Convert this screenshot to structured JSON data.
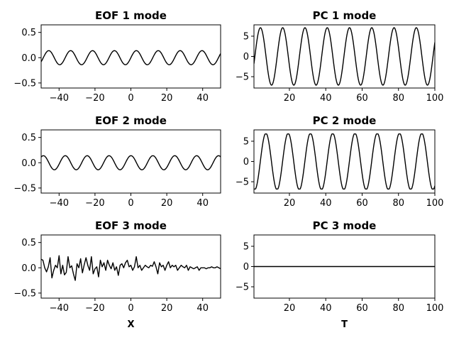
{
  "chart_data": [
    {
      "id": "eof1",
      "type": "line",
      "title": "EOF 1 mode",
      "xlabel": "",
      "ylabel": "",
      "xlim": [
        -50,
        50
      ],
      "ylim": [
        -0.6,
        0.65
      ],
      "xticks": [
        -40,
        -20,
        0,
        20,
        40
      ],
      "xtick_labels": [
        "−40",
        "−20",
        "0",
        "20",
        "40"
      ],
      "yticks": [
        0.5,
        0.0,
        -0.5
      ],
      "ytick_labels": [
        "0.5",
        "0.0",
        "−0.5"
      ],
      "series": [
        {
          "kind": "sine",
          "x_range": [
            -50,
            50
          ],
          "n": 201,
          "amplitude": 0.14,
          "period": 12.2,
          "phase_x": 0
        }
      ]
    },
    {
      "id": "pc1",
      "type": "line",
      "title": "PC 1 mode",
      "xlabel": "",
      "ylabel": "",
      "xlim": [
        0.5,
        100
      ],
      "ylim": [
        -7.8,
        7.8
      ],
      "xticks": [
        20,
        40,
        60,
        80,
        100
      ],
      "xtick_labels": [
        "20",
        "40",
        "60",
        "80",
        "100"
      ],
      "yticks": [
        5,
        0,
        -5
      ],
      "ytick_labels": [
        "5",
        "0",
        "−5"
      ],
      "series": [
        {
          "kind": "sine",
          "x_range": [
            0.5,
            100
          ],
          "n": 400,
          "amplitude": 7.1,
          "period": 12.25,
          "phase_x": 1
        }
      ]
    },
    {
      "id": "eof2",
      "type": "line",
      "title": "EOF 2 mode",
      "xlabel": "",
      "ylabel": "",
      "xlim": [
        -50,
        50
      ],
      "ylim": [
        -0.6,
        0.65
      ],
      "xticks": [
        -40,
        -20,
        0,
        20,
        40
      ],
      "xtick_labels": [
        "−40",
        "−20",
        "0",
        "20",
        "40"
      ],
      "yticks": [
        0.5,
        0.0,
        -0.5
      ],
      "ytick_labels": [
        "0.5",
        "0.0",
        "−0.5"
      ],
      "series": [
        {
          "kind": "sine",
          "x_range": [
            -50,
            50
          ],
          "n": 201,
          "amplitude": 0.14,
          "period": 12.2,
          "phase_x": -3
        }
      ]
    },
    {
      "id": "pc2",
      "type": "line",
      "title": "PC 2 mode",
      "xlabel": "",
      "ylabel": "",
      "xlim": [
        0.5,
        100
      ],
      "ylim": [
        -7.8,
        7.8
      ],
      "xticks": [
        20,
        40,
        60,
        80,
        100
      ],
      "xtick_labels": [
        "20",
        "40",
        "60",
        "80",
        "100"
      ],
      "yticks": [
        5,
        0,
        -5
      ],
      "ytick_labels": [
        "5",
        "0",
        "−5"
      ],
      "series": [
        {
          "kind": "sine",
          "x_range": [
            0.5,
            100
          ],
          "n": 400,
          "amplitude": 7.0,
          "period": 12.25,
          "phase_x": 4,
          "clip": 6.8
        }
      ]
    },
    {
      "id": "eof3",
      "type": "line",
      "title": "EOF 3 mode",
      "xlabel": "X",
      "ylabel": "",
      "xlim": [
        -50,
        50
      ],
      "ylim": [
        -0.6,
        0.65
      ],
      "xticks": [
        -40,
        -20,
        0,
        20,
        40
      ],
      "xtick_labels": [
        "−40",
        "−20",
        "0",
        "20",
        "40"
      ],
      "yticks": [
        0.5,
        0.0,
        -0.5
      ],
      "ytick_labels": [
        "0.5",
        "0.0",
        "−0.5"
      ],
      "series": [
        {
          "kind": "points",
          "x": [
            -50,
            -49,
            -48,
            -47,
            -46,
            -45,
            -44,
            -43,
            -42,
            -41,
            -40,
            -39,
            -38,
            -37,
            -36,
            -35,
            -34,
            -33,
            -32,
            -31,
            -30,
            -29,
            -28,
            -27,
            -26,
            -25,
            -24,
            -23,
            -22,
            -21,
            -20,
            -19,
            -18,
            -17,
            -16,
            -15,
            -14,
            -13,
            -12,
            -11,
            -10,
            -9,
            -8,
            -7,
            -6,
            -5,
            -4,
            -3,
            -2,
            -1,
            0,
            1,
            2,
            3,
            4,
            5,
            6,
            7,
            8,
            9,
            10,
            11,
            12,
            13,
            14,
            15,
            16,
            17,
            18,
            19,
            20,
            21,
            22,
            23,
            24,
            25,
            26,
            27,
            28,
            29,
            30,
            31,
            32,
            33,
            34,
            35,
            36,
            37,
            38,
            39,
            40,
            41,
            42,
            43,
            44,
            45,
            46,
            47,
            48,
            49,
            50
          ],
          "y": [
            0.17,
            0.15,
            0.0,
            -0.08,
            0.02,
            0.2,
            -0.2,
            -0.05,
            0.05,
            0.0,
            0.24,
            -0.12,
            0.05,
            -0.14,
            -0.09,
            0.22,
            0.0,
            0.04,
            -0.12,
            -0.25,
            0.08,
            0.0,
            0.18,
            -0.1,
            0.06,
            0.2,
            0.05,
            -0.05,
            0.22,
            -0.12,
            -0.02,
            0.02,
            -0.18,
            0.15,
            0.02,
            0.1,
            -0.05,
            0.15,
            0.05,
            -0.02,
            0.1,
            -0.05,
            0.02,
            -0.15,
            0.05,
            0.08,
            0.0,
            0.1,
            0.15,
            0.02,
            0.05,
            -0.05,
            0.02,
            0.22,
            0.0,
            0.05,
            -0.05,
            0.0,
            0.05,
            0.02,
            0.0,
            0.05,
            0.03,
            0.12,
            0.02,
            -0.12,
            0.1,
            0.02,
            0.05,
            -0.05,
            0.05,
            0.12,
            0.0,
            0.05,
            0.02,
            0.05,
            -0.05,
            0.0,
            0.05,
            0.02,
            0.0,
            0.05,
            -0.05,
            0.02,
            0.0,
            -0.02,
            0.0,
            0.02,
            -0.05,
            0.0,
            0.0,
            0.0,
            -0.02,
            0.0,
            0.0,
            0.02,
            0.0,
            0.0,
            0.02,
            0.0,
            -0.02
          ]
        }
      ]
    },
    {
      "id": "pc3",
      "type": "line",
      "title": "PC 3 mode",
      "xlabel": "T",
      "ylabel": "",
      "xlim": [
        0.5,
        100
      ],
      "ylim": [
        -7.8,
        7.8
      ],
      "xticks": [
        20,
        40,
        60,
        80,
        100
      ],
      "xtick_labels": [
        "20",
        "40",
        "60",
        "80",
        "100"
      ],
      "yticks": [
        5,
        0,
        -5
      ],
      "ytick_labels": [
        "5",
        "0",
        "−5"
      ],
      "series": [
        {
          "kind": "points",
          "x": [
            0.5,
            100
          ],
          "y": [
            0,
            0
          ]
        }
      ]
    }
  ]
}
